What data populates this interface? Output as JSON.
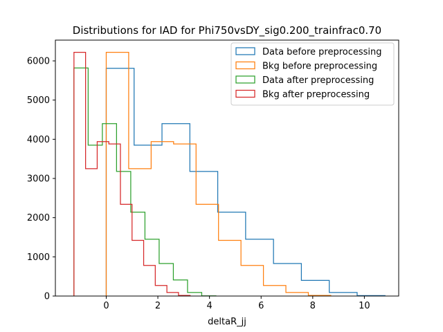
{
  "chart_data": {
    "type": "histogram",
    "title": "Distributions for IAD for Phi750vsDY_sig0.200_trainfrac0.70",
    "xlabel": "deltaR_jj",
    "ylabel": "",
    "xlim": [
      -1.97,
      11.33
    ],
    "ylim": [
      0,
      6530
    ],
    "xticks": [
      0,
      2,
      4,
      6,
      8,
      10
    ],
    "yticks": [
      0,
      1000,
      2000,
      3000,
      4000,
      5000,
      6000
    ],
    "legend_position": "top-right",
    "grid": false,
    "series": [
      {
        "name": "Data before preprocessing",
        "color": "#1f77b4",
        "edges": [
          0.0,
          1.08,
          2.16,
          3.24,
          4.32,
          5.4,
          6.48,
          7.56,
          8.64,
          9.72,
          10.8
        ],
        "counts": [
          5810,
          3850,
          4400,
          3180,
          2140,
          1450,
          830,
          400,
          90,
          10
        ]
      },
      {
        "name": "Bkg before preprocessing",
        "color": "#ff7f0e",
        "edges": [
          0.0,
          0.87,
          1.74,
          2.61,
          3.48,
          4.35,
          5.22,
          6.09,
          6.96,
          7.83,
          8.7
        ],
        "counts": [
          6220,
          3250,
          3940,
          3880,
          2340,
          1420,
          780,
          270,
          90,
          15
        ]
      },
      {
        "name": "Data after preprocessing",
        "color": "#2ca02c",
        "edges": [
          -1.25,
          -0.7,
          -0.15,
          0.4,
          0.95,
          1.5,
          2.05,
          2.6,
          3.15,
          3.7,
          4.25
        ],
        "counts": [
          5820,
          3850,
          4400,
          3180,
          2140,
          1450,
          830,
          410,
          90,
          5
        ]
      },
      {
        "name": "Bkg after preprocessing",
        "color": "#d62728",
        "edges": [
          -1.25,
          -0.8,
          -0.35,
          0.1,
          0.55,
          1.0,
          1.45,
          1.9,
          2.35,
          2.8,
          3.25
        ],
        "counts": [
          6220,
          3250,
          3940,
          3880,
          2340,
          1420,
          780,
          270,
          90,
          15
        ]
      }
    ]
  }
}
